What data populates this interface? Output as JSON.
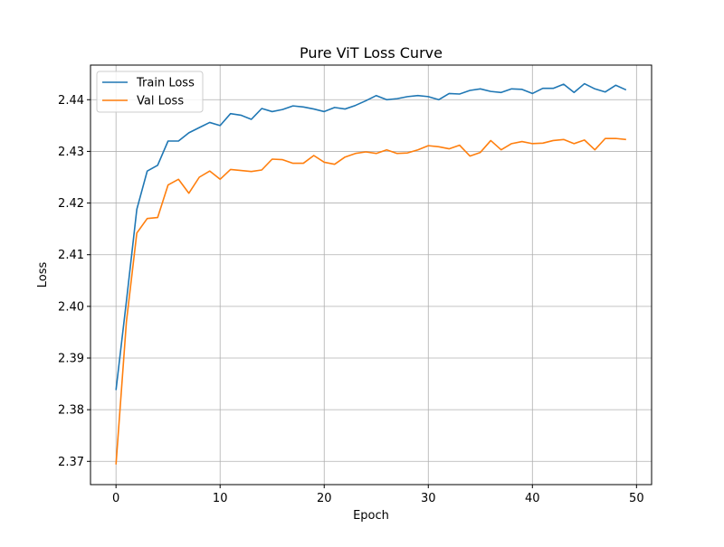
{
  "chart_data": {
    "type": "line",
    "title": "Pure ViT Loss Curve",
    "xlabel": "Epoch",
    "ylabel": "Loss",
    "xlim": [
      -2.45,
      51.45
    ],
    "ylim": [
      2.3655,
      2.4467
    ],
    "xticks": [
      0,
      10,
      20,
      30,
      40,
      50
    ],
    "yticks": [
      2.37,
      2.38,
      2.39,
      2.4,
      2.41,
      2.42,
      2.43,
      2.44
    ],
    "xtick_labels": [
      "0",
      "10",
      "20",
      "30",
      "40",
      "50"
    ],
    "ytick_labels": [
      "2.37",
      "2.38",
      "2.39",
      "2.40",
      "2.41",
      "2.42",
      "2.43",
      "2.44"
    ],
    "grid": true,
    "legend_position": "upper-left",
    "x": [
      0,
      1,
      2,
      3,
      4,
      5,
      6,
      7,
      8,
      9,
      10,
      11,
      12,
      13,
      14,
      15,
      16,
      17,
      18,
      19,
      20,
      21,
      22,
      23,
      24,
      25,
      26,
      27,
      28,
      29,
      30,
      31,
      32,
      33,
      34,
      35,
      36,
      37,
      38,
      39,
      40,
      41,
      42,
      43,
      44,
      45,
      46,
      47,
      48,
      49
    ],
    "series": [
      {
        "name": "Train Loss",
        "color": "#1f77b4",
        "values": [
          2.3838,
          2.401,
          2.4188,
          2.4262,
          2.4273,
          2.432,
          2.432,
          2.4336,
          2.4346,
          2.4356,
          2.435,
          2.4373,
          2.437,
          2.4362,
          2.4383,
          2.4377,
          2.4381,
          2.4388,
          2.4386,
          2.4382,
          2.4377,
          2.4385,
          2.4382,
          2.4389,
          2.4398,
          2.4408,
          2.44,
          2.4402,
          2.4406,
          2.4408,
          2.4406,
          2.44,
          2.4412,
          2.4411,
          2.4418,
          2.4421,
          2.4416,
          2.4414,
          2.4421,
          2.442,
          2.4412,
          2.4422,
          2.4422,
          2.443,
          2.4414,
          2.4431,
          2.4421,
          2.4415,
          2.4428,
          2.4419
        ]
      },
      {
        "name": "Val Loss",
        "color": "#ff7f0e",
        "values": [
          2.3694,
          2.397,
          2.4142,
          2.417,
          2.4172,
          2.4235,
          2.4246,
          2.4219,
          2.425,
          2.4262,
          2.4246,
          2.4265,
          2.4263,
          2.4261,
          2.4264,
          2.4285,
          2.4284,
          2.4277,
          2.4277,
          2.4292,
          2.4279,
          2.4275,
          2.4289,
          2.4296,
          2.4299,
          2.4296,
          2.4303,
          2.4296,
          2.4297,
          2.4303,
          2.4311,
          2.4309,
          2.4305,
          2.4312,
          2.4291,
          2.4298,
          2.4321,
          2.4303,
          2.4315,
          2.4319,
          2.4315,
          2.4316,
          2.4321,
          2.4323,
          2.4315,
          2.4322,
          2.4303,
          2.4325,
          2.4325,
          2.4323
        ]
      }
    ]
  }
}
